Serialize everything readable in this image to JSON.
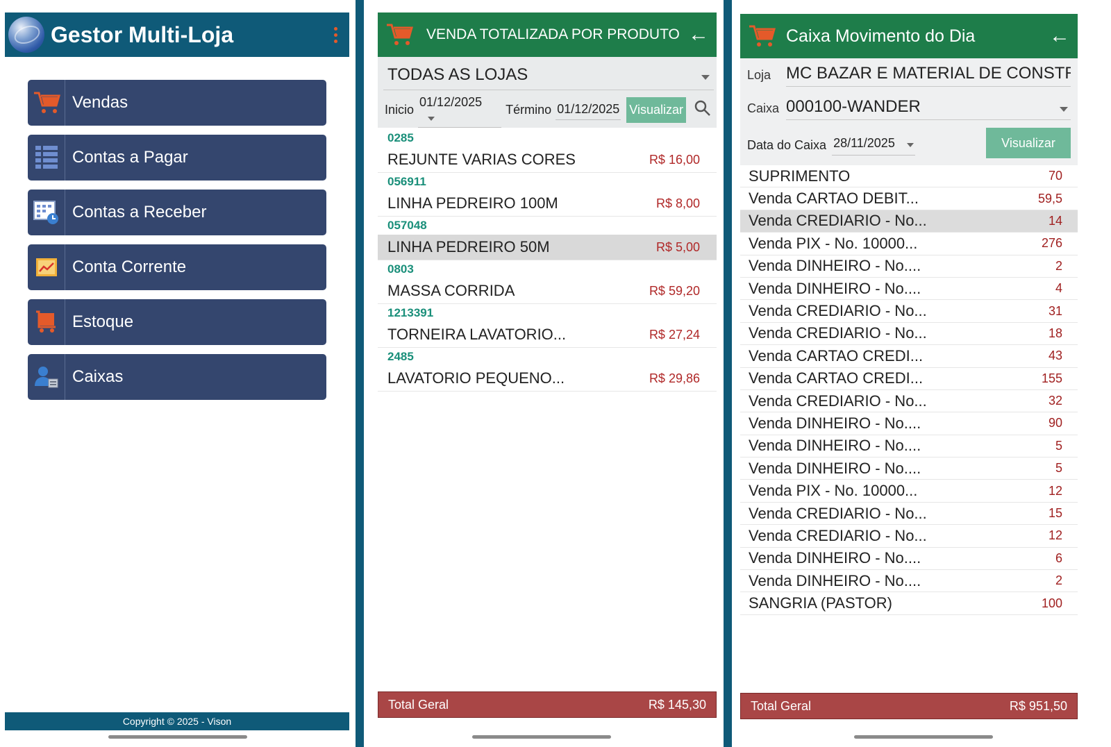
{
  "screen1": {
    "title": "Gestor Multi-Loja",
    "menu": [
      {
        "label": "Vendas",
        "icon": "cart-icon"
      },
      {
        "label": "Contas a Pagar",
        "icon": "list-icon"
      },
      {
        "label": "Contas a Receber",
        "icon": "calendar-clock-icon"
      },
      {
        "label": "Conta Corrente",
        "icon": "chart-icon"
      },
      {
        "label": "Estoque",
        "icon": "stock-cart-icon"
      },
      {
        "label": "Caixas",
        "icon": "user-register-icon"
      }
    ],
    "footer": "Copyright © 2025 - Vison"
  },
  "screen2": {
    "title": "VENDA TOTALIZADA POR PRODUTO",
    "store": "TODAS AS LOJAS",
    "start_label": "Inicio",
    "start_date": "01/12/2025",
    "end_label": "Término",
    "end_date": "01/12/2025",
    "view_button": "Visualizar",
    "products": [
      {
        "code": "0285",
        "name": "REJUNTE VARIAS CORES",
        "price": "R$ 16,00"
      },
      {
        "code": "056911",
        "name": "LINHA PEDREIRO 100M",
        "price": "R$ 8,00"
      },
      {
        "code": "057048",
        "name": "LINHA PEDREIRO 50M",
        "price": "R$ 5,00"
      },
      {
        "code": "0803",
        "name": "MASSA CORRIDA",
        "price": "R$ 59,20"
      },
      {
        "code": "1213391",
        "name": "TORNEIRA LAVATORIO...",
        "price": "R$ 27,24"
      },
      {
        "code": "2485",
        "name": "LAVATORIO PEQUENO...",
        "price": "R$ 29,86"
      }
    ],
    "total_label": "Total Geral",
    "total_value": "R$ 145,30"
  },
  "screen3": {
    "title": "Caixa Movimento do Dia",
    "store_label": "Loja",
    "store": "MC BAZAR E MATERIAL DE CONSTRU",
    "cashier_label": "Caixa",
    "cashier": "000100-WANDER",
    "date_label": "Data do Caixa",
    "date": "28/11/2025",
    "view_button": "Visualizar",
    "movements": [
      {
        "name": "SUPRIMENTO",
        "value": "70"
      },
      {
        "name": "Venda CARTAO DEBIT...",
        "value": "59,5"
      },
      {
        "name": "Venda CREDIARIO - No...",
        "value": "14"
      },
      {
        "name": "Venda PIX - No. 10000...",
        "value": "276"
      },
      {
        "name": "Venda DINHEIRO - No....",
        "value": "2"
      },
      {
        "name": "Venda DINHEIRO - No....",
        "value": "4"
      },
      {
        "name": "Venda CREDIARIO - No...",
        "value": "31"
      },
      {
        "name": "Venda CREDIARIO - No...",
        "value": "18"
      },
      {
        "name": "Venda CARTAO CREDI...",
        "value": "43"
      },
      {
        "name": "Venda CARTAO CREDI...",
        "value": "155"
      },
      {
        "name": "Venda CREDIARIO - No...",
        "value": "32"
      },
      {
        "name": "Venda DINHEIRO - No....",
        "value": "90"
      },
      {
        "name": "Venda DINHEIRO - No....",
        "value": "5"
      },
      {
        "name": "Venda DINHEIRO - No....",
        "value": "5"
      },
      {
        "name": "Venda PIX - No. 10000...",
        "value": "12"
      },
      {
        "name": "Venda CREDIARIO - No...",
        "value": "15"
      },
      {
        "name": "Venda CREDIARIO - No...",
        "value": "12"
      },
      {
        "name": "Venda DINHEIRO - No....",
        "value": "6"
      },
      {
        "name": "Venda DINHEIRO - No....",
        "value": "2"
      },
      {
        "name": "SANGRIA (PASTOR)",
        "value": "100"
      }
    ],
    "total_label": "Total Geral",
    "total_value": "R$ 951,50"
  },
  "colors": {
    "navy_header": "#0f5a78",
    "menu_button": "#34466e",
    "green_header": "#1e7d4a",
    "accent_button": "#6fb99a",
    "total_bar": "#a94646",
    "price_red": "#b02828",
    "code_teal": "#1a8f7a",
    "icon_orange": "#e45a2a"
  }
}
